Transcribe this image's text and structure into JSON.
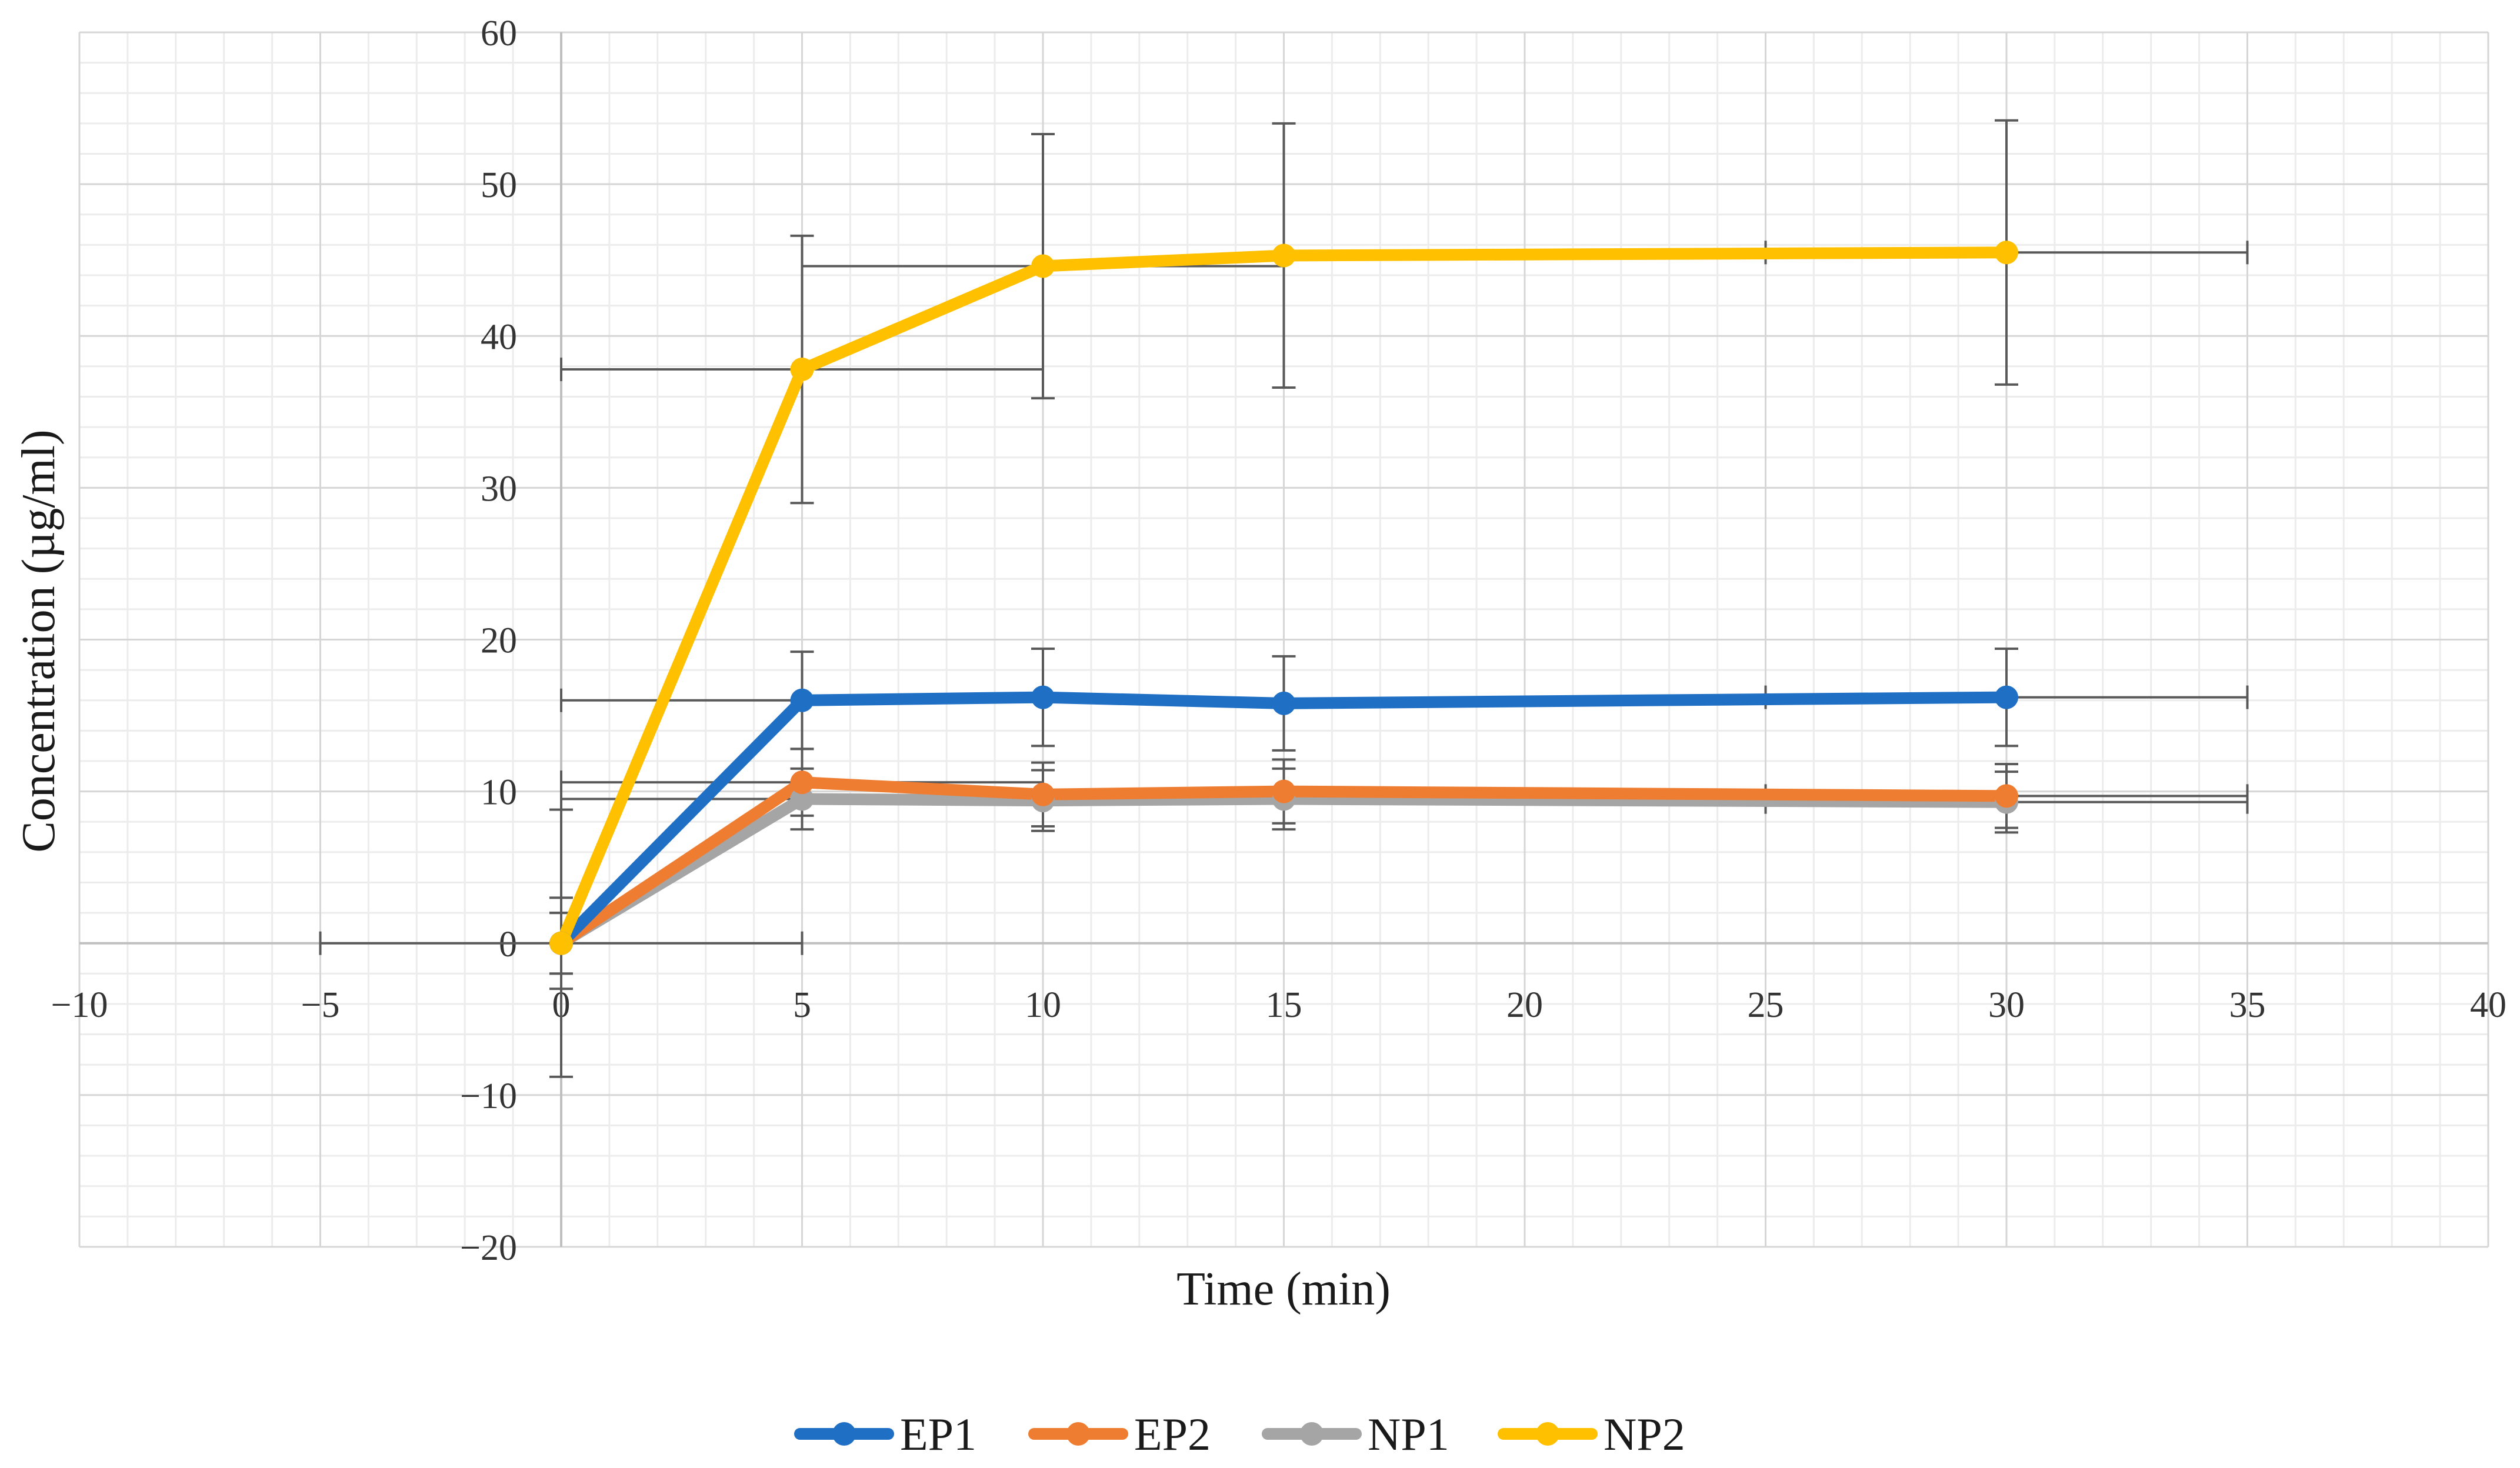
{
  "chart_data": {
    "type": "line",
    "xlabel": "Time (min)",
    "ylabel": "Concentration (µg/ml)",
    "xlim": [
      -10,
      40
    ],
    "ylim": [
      -20,
      60
    ],
    "x_ticks": [
      -10,
      -5,
      0,
      5,
      10,
      15,
      20,
      25,
      30,
      35,
      40
    ],
    "y_ticks": [
      -20,
      -10,
      0,
      10,
      20,
      30,
      40,
      50,
      60
    ],
    "x_tick_labels": [
      "−10",
      "−5",
      "0",
      "5",
      "10",
      "15",
      "20",
      "25",
      "30",
      "35",
      "40"
    ],
    "y_tick_labels": [
      "−20",
      "−10",
      "0",
      "10",
      "20",
      "30",
      "40",
      "50",
      "60"
    ],
    "grid": true,
    "legend_position": "bottom",
    "series": [
      {
        "name": "EP1",
        "color": "#1f6fc5",
        "points": [
          {
            "x": 0,
            "y": 0,
            "yerr": 2,
            "xerr": 0
          },
          {
            "x": 5,
            "y": 16,
            "yerr": 3.2,
            "xerr": 5
          },
          {
            "x": 10,
            "y": 16.2,
            "yerr": 3.2,
            "xerr": 0
          },
          {
            "x": 15,
            "y": 15.8,
            "yerr": 3.1,
            "xerr": 0
          },
          {
            "x": 30,
            "y": 16.2,
            "yerr": 3.2,
            "xerr": 5
          }
        ]
      },
      {
        "name": "EP2",
        "color": "#ef7d31",
        "points": [
          {
            "x": 0,
            "y": 0,
            "yerr": 3,
            "xerr": 0
          },
          {
            "x": 5,
            "y": 10.6,
            "yerr": 2.2,
            "xerr": 5
          },
          {
            "x": 10,
            "y": 9.8,
            "yerr": 2.1,
            "xerr": 0
          },
          {
            "x": 15,
            "y": 10,
            "yerr": 2.1,
            "xerr": 0
          },
          {
            "x": 30,
            "y": 9.7,
            "yerr": 2.1,
            "xerr": 5
          }
        ]
      },
      {
        "name": "NP1",
        "color": "#a5a5a5",
        "points": [
          {
            "x": 0,
            "y": 0,
            "yerr": 2,
            "xerr": 0
          },
          {
            "x": 5,
            "y": 9.5,
            "yerr": 2,
            "xerr": 5
          },
          {
            "x": 10,
            "y": 9.4,
            "yerr": 2,
            "xerr": 0
          },
          {
            "x": 15,
            "y": 9.5,
            "yerr": 2,
            "xerr": 0
          },
          {
            "x": 30,
            "y": 9.3,
            "yerr": 2,
            "xerr": 5
          }
        ]
      },
      {
        "name": "NP2",
        "color": "#ffc000",
        "points": [
          {
            "x": 0,
            "y": 0,
            "yerr": 8.8,
            "xerr": 5
          },
          {
            "x": 5,
            "y": 37.8,
            "yerr": 8.8,
            "xerr": 5
          },
          {
            "x": 10,
            "y": 44.6,
            "yerr": 8.7,
            "xerr": 5
          },
          {
            "x": 15,
            "y": 45.3,
            "yerr": 8.7,
            "xerr": 0
          },
          {
            "x": 30,
            "y": 45.5,
            "yerr": 8.7,
            "xerr": 5
          }
        ]
      }
    ]
  }
}
